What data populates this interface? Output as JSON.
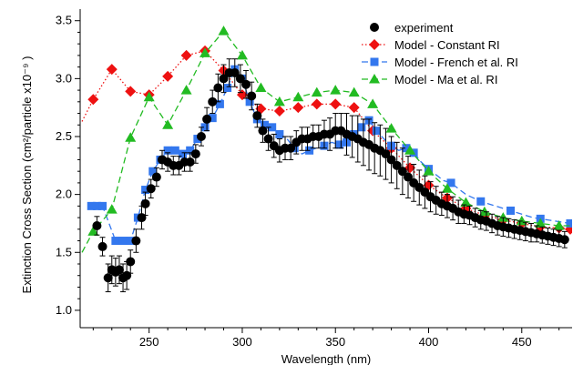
{
  "chart_data": {
    "type": "scatter",
    "title": "",
    "xlabel": "Wavelength (nm)",
    "ylabel": "Extinction Cross Section (cm²/particle x10⁻⁹ )",
    "xlim": [
      213,
      477
    ],
    "ylim": [
      0.85,
      3.6
    ],
    "xticks": [
      "250",
      "300",
      "350",
      "400",
      "450"
    ],
    "yticks": [
      "1.0",
      "1.5",
      "2.0",
      "2.5",
      "3.0",
      "3.5"
    ],
    "grid": false,
    "legend_position": "top-right",
    "series": [
      {
        "name": "experiment",
        "color": "#000000",
        "marker": "circle",
        "x": [
          222,
          225,
          228,
          230,
          232,
          234,
          236,
          238,
          240,
          243,
          246,
          248,
          251,
          254,
          257,
          260,
          263,
          266,
          269,
          272,
          275,
          278,
          281,
          284,
          287,
          290,
          293,
          296,
          299,
          302,
          305,
          308,
          311,
          314,
          317,
          320,
          323,
          326,
          329,
          332,
          335,
          338,
          341,
          344,
          347,
          350,
          353,
          356,
          359,
          362,
          365,
          368,
          371,
          374,
          377,
          380,
          383,
          386,
          389,
          392,
          395,
          398,
          401,
          404,
          407,
          410,
          413,
          416,
          419,
          422,
          425,
          428,
          431,
          434,
          437,
          440,
          443,
          446,
          449,
          452,
          455,
          458,
          461,
          464,
          467,
          470,
          473
        ],
        "y": [
          1.73,
          1.55,
          1.28,
          1.35,
          1.33,
          1.35,
          1.28,
          1.3,
          1.42,
          1.6,
          1.8,
          1.92,
          2.05,
          2.15,
          2.3,
          2.28,
          2.25,
          2.25,
          2.28,
          2.28,
          2.35,
          2.5,
          2.65,
          2.8,
          2.92,
          3.0,
          3.05,
          3.05,
          3.0,
          2.95,
          2.85,
          2.68,
          2.55,
          2.48,
          2.42,
          2.38,
          2.4,
          2.4,
          2.45,
          2.48,
          2.48,
          2.5,
          2.5,
          2.52,
          2.52,
          2.55,
          2.55,
          2.52,
          2.5,
          2.48,
          2.45,
          2.43,
          2.4,
          2.38,
          2.35,
          2.3,
          2.25,
          2.2,
          2.15,
          2.1,
          2.06,
          2.02,
          1.98,
          1.95,
          1.92,
          1.9,
          1.88,
          1.85,
          1.83,
          1.82,
          1.8,
          1.78,
          1.77,
          1.75,
          1.73,
          1.72,
          1.71,
          1.7,
          1.69,
          1.68,
          1.67,
          1.66,
          1.65,
          1.64,
          1.63,
          1.62,
          1.61
        ],
        "error": [
          0.08,
          0.08,
          0.12,
          0.12,
          0.12,
          0.12,
          0.12,
          0.12,
          0.1,
          0.1,
          0.1,
          0.1,
          0.08,
          0.08,
          0.08,
          0.08,
          0.08,
          0.08,
          0.08,
          0.08,
          0.08,
          0.08,
          0.1,
          0.1,
          0.12,
          0.12,
          0.12,
          0.12,
          0.12,
          0.12,
          0.12,
          0.1,
          0.1,
          0.1,
          0.1,
          0.1,
          0.1,
          0.1,
          0.1,
          0.1,
          0.1,
          0.1,
          0.1,
          0.12,
          0.14,
          0.15,
          0.15,
          0.18,
          0.18,
          0.2,
          0.2,
          0.22,
          0.22,
          0.22,
          0.22,
          0.2,
          0.2,
          0.2,
          0.18,
          0.16,
          0.15,
          0.14,
          0.13,
          0.12,
          0.1,
          0.1,
          0.1,
          0.1,
          0.08,
          0.08,
          0.08,
          0.08,
          0.08,
          0.08,
          0.08,
          0.08,
          0.08,
          0.08,
          0.08,
          0.08,
          0.08,
          0.07,
          0.07,
          0.07,
          0.07,
          0.07,
          0.07
        ]
      },
      {
        "name": "Model - Constant RI",
        "color": "#ee1111",
        "line_style": "dotted",
        "marker": "diamond",
        "x": [
          214,
          220,
          230,
          240,
          250,
          260,
          270,
          280,
          290,
          300,
          310,
          320,
          330,
          340,
          350,
          360,
          370,
          380,
          390,
          400,
          410,
          420,
          430,
          440,
          450,
          460,
          470,
          476
        ],
        "y": [
          2.63,
          2.82,
          3.08,
          2.89,
          2.86,
          3.02,
          3.2,
          3.24,
          3.07,
          2.86,
          2.74,
          2.72,
          2.75,
          2.78,
          2.78,
          2.75,
          2.55,
          2.4,
          2.23,
          2.08,
          1.97,
          1.88,
          1.82,
          1.78,
          1.75,
          1.72,
          1.71,
          1.7
        ],
        "markers_from": 1
      },
      {
        "name": "Model - French et al. RI",
        "color": "#3377ee",
        "line_style": "dashed",
        "marker": "square",
        "x": [
          219,
          222,
          225,
          232,
          236,
          240,
          244,
          248,
          252,
          256,
          260,
          264,
          268,
          272,
          276,
          280,
          284,
          288,
          292,
          296,
          300,
          304,
          308,
          312,
          316,
          320,
          324,
          328,
          332,
          336,
          340,
          344,
          348,
          352,
          356,
          360,
          364,
          368,
          372,
          376,
          380,
          384,
          388,
          392,
          396,
          400,
          404,
          408,
          412,
          416,
          420,
          424,
          428,
          432,
          436,
          440,
          444,
          448,
          452,
          456,
          460,
          464,
          468,
          472,
          476
        ],
        "y": [
          1.9,
          1.9,
          1.9,
          1.6,
          1.6,
          1.6,
          1.8,
          2.04,
          2.2,
          2.3,
          2.38,
          2.38,
          2.35,
          2.38,
          2.48,
          2.58,
          2.66,
          2.78,
          2.92,
          3.08,
          3.0,
          2.8,
          2.65,
          2.6,
          2.58,
          2.52,
          2.48,
          2.4,
          2.35,
          2.38,
          2.4,
          2.42,
          2.45,
          2.43,
          2.45,
          2.52,
          2.58,
          2.64,
          2.55,
          2.48,
          2.42,
          2.38,
          2.4,
          2.36,
          2.28,
          2.22,
          2.17,
          2.12,
          2.1,
          2.05,
          2.0,
          1.97,
          1.94,
          1.92,
          1.9,
          1.88,
          1.86,
          1.84,
          1.82,
          1.8,
          1.79,
          1.78,
          1.77,
          1.76,
          1.75
        ],
        "marker_x": [
          219,
          222,
          225,
          232,
          236,
          240,
          244,
          248,
          252,
          256,
          260,
          264,
          268,
          272,
          276,
          280,
          284,
          288,
          292,
          296,
          300,
          304,
          308,
          312,
          316,
          320,
          328,
          336,
          344,
          352,
          356,
          360,
          364,
          368,
          372,
          380,
          388,
          392,
          400,
          412,
          428,
          444,
          460,
          476
        ]
      },
      {
        "name": "Model - Ma et al. RI",
        "color": "#22bb22",
        "line_style": "dashed",
        "marker": "triangle",
        "x": [
          214,
          220,
          230,
          240,
          250,
          260,
          270,
          280,
          290,
          300,
          310,
          320,
          330,
          340,
          350,
          360,
          370,
          380,
          390,
          400,
          410,
          420,
          430,
          440,
          450,
          460,
          470,
          476
        ],
        "y": [
          1.5,
          1.68,
          1.87,
          2.49,
          2.84,
          2.6,
          2.9,
          3.22,
          3.41,
          3.2,
          2.92,
          2.8,
          2.84,
          2.88,
          2.9,
          2.88,
          2.78,
          2.57,
          2.38,
          2.2,
          2.05,
          1.93,
          1.85,
          1.8,
          1.77,
          1.75,
          1.73,
          1.73
        ],
        "markers_from": 1
      }
    ]
  }
}
